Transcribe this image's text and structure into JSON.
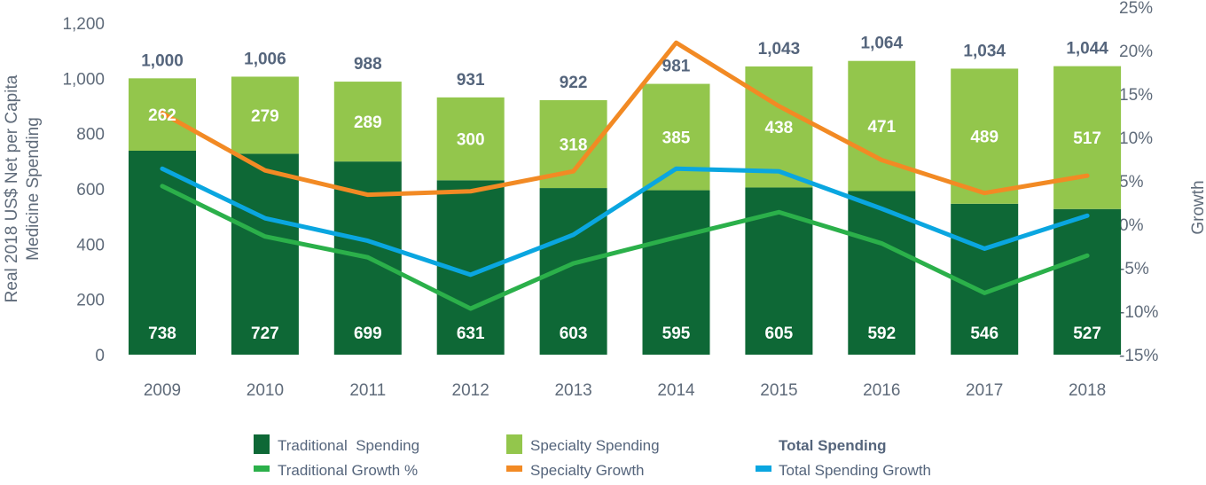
{
  "chart_data": {
    "type": "bar",
    "stacked": true,
    "categories": [
      "2009",
      "2010",
      "2011",
      "2012",
      "2013",
      "2014",
      "2015",
      "2016",
      "2017",
      "2018"
    ],
    "ylabel": "Real 2018 US$ Net per Capita Medicine Spending",
    "ylabel_lines": [
      "Real 2018 US$ Net per Capita",
      "Medicine Spending"
    ],
    "y2label": "Growth",
    "ylim": [
      0,
      1200
    ],
    "yticks": [
      "0",
      "200",
      "400",
      "600",
      "800",
      "1,000",
      "1,200"
    ],
    "y2lim": [
      -15,
      25
    ],
    "y2ticks": [
      "-15%",
      "-10%",
      "-5%",
      "0%",
      "5%",
      "10%",
      "15%",
      "20%",
      "25%"
    ],
    "grid": false,
    "legend_placement": "bottom",
    "series": [
      {
        "name": "Traditional  Spending",
        "kind": "bar",
        "color": "#0e6836",
        "values": [
          738,
          727,
          699,
          631,
          603,
          595,
          605,
          592,
          546,
          527
        ]
      },
      {
        "name": "Specialty Spending",
        "kind": "bar",
        "color": "#93c64c",
        "values": [
          262,
          279,
          289,
          300,
          318,
          385,
          438,
          471,
          489,
          517
        ]
      },
      {
        "name": "Traditional Growth %",
        "kind": "line",
        "axis": "right",
        "color": "#2bb04a",
        "values": [
          4.4,
          -1.4,
          -3.8,
          -9.7,
          -4.5,
          -1.5,
          1.4,
          -2.2,
          -7.9,
          -3.6
        ]
      },
      {
        "name": "Specialty Growth",
        "kind": "line",
        "axis": "right",
        "color": "#f28a24",
        "values": [
          12.8,
          6.2,
          3.4,
          3.8,
          6.1,
          20.9,
          13.6,
          7.4,
          3.6,
          5.6
        ]
      },
      {
        "name": "Total Spending Growth",
        "kind": "line",
        "axis": "right",
        "color": "#0aa6e0",
        "values": [
          6.4,
          0.7,
          -1.9,
          -5.8,
          -1.2,
          6.4,
          6.1,
          1.8,
          -2.8,
          1.0
        ]
      }
    ],
    "totals": {
      "name": "Total Spending",
      "labels": [
        "1,000",
        "1,006",
        "988",
        "931",
        "922",
        "981",
        "1,043",
        "1,064",
        "1,034",
        "1,044"
      ],
      "values": [
        1000,
        1006,
        988,
        931,
        922,
        981,
        1043,
        1064,
        1034,
        1044
      ]
    }
  }
}
